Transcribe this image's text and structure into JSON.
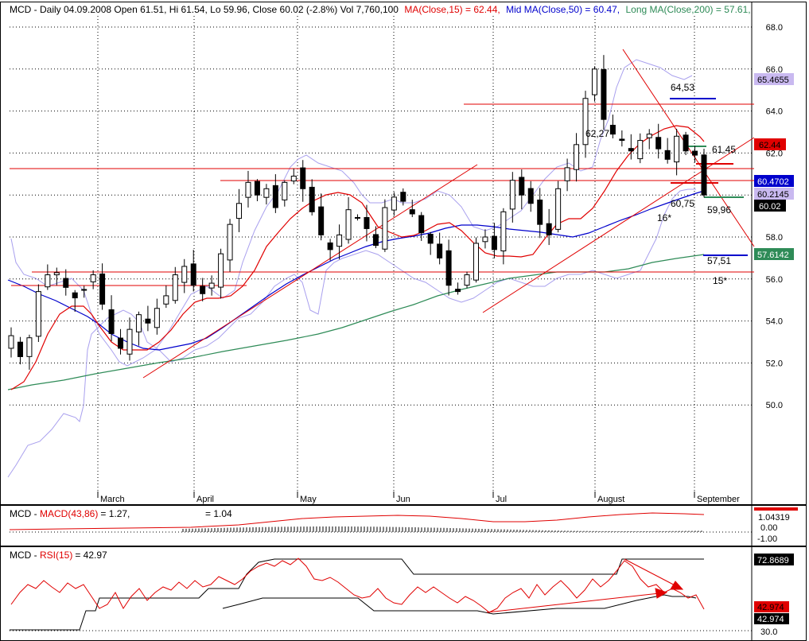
{
  "header": {
    "main": "MCD - Daily 04.09.2008 Open 61.51, Hi 61.54, Lo 59.96, Close 60.02 (-2.8%) Vol 7,760,100",
    "ma15": "MA(Close,15) = 62.44,",
    "ma50": "Mid MA(Close,50) = 60.47,",
    "ma200": "Long MA(Close,200) = 57.61,"
  },
  "macd_header": {
    "prefix": "MCD - ",
    "name": "MACD(43,86)",
    "value": "= 1.27,",
    "signal": "= 1.04"
  },
  "rsi_header": {
    "prefix": "MCD - ",
    "name": "RSI(15)",
    "value": "= 42.97"
  },
  "price_tags": [
    {
      "text": "65.4655",
      "bg": "#c9b9f0",
      "fg": "#000000"
    },
    {
      "text": "62.44",
      "bg": "#e00000",
      "fg": "#000000"
    },
    {
      "text": "60.4702",
      "bg": "#0000cc",
      "fg": "#ffffff"
    },
    {
      "text": "60.2145",
      "bg": "#c9b9f0",
      "fg": "#000000"
    },
    {
      "text": "60.02",
      "bg": "#000000",
      "fg": "#ffffff"
    },
    {
      "text": "57.6142",
      "bg": "#2e8b57",
      "fg": "#ffffff"
    }
  ],
  "macd_tags": [
    {
      "text": "1.04319"
    },
    {
      "text": "0.00"
    },
    {
      "text": "-1.00"
    }
  ],
  "rsi_tags": [
    {
      "text": "72.8689",
      "bg": "#000000",
      "fg": "#ffffff"
    },
    {
      "text": "42.974",
      "bg": "#e00000",
      "fg": "#000000"
    },
    {
      "text": "42.974",
      "bg": "#000000",
      "fg": "#ffffff"
    },
    {
      "text": "30.0",
      "bg": "#ffffff",
      "fg": "#000000"
    }
  ],
  "annotations": [
    {
      "text": "64,53"
    },
    {
      "text": "62,27"
    },
    {
      "text": "61,45"
    },
    {
      "text": "60,75"
    },
    {
      "text": "59,96"
    },
    {
      "text": "16*"
    },
    {
      "text": "57,51"
    },
    {
      "text": "15*"
    }
  ],
  "colors": {
    "ma15": "#e00000",
    "ma50": "#0000cc",
    "ma200": "#2e8b57",
    "bollinger": "#a9a0ee",
    "trend": "#e00000"
  },
  "chart_data": {
    "type": "candlestick",
    "symbol": "MCD",
    "interval": "Daily",
    "y_ticks": [
      "68.0",
      "66.0",
      "64.0",
      "62.0",
      "60.0",
      "58.0",
      "56.0",
      "54.0",
      "52.0",
      "50.0"
    ],
    "ylim": [
      48.0,
      68.5
    ],
    "x_labels": [
      "March",
      "April",
      "May",
      "Jun",
      "Jul",
      "August",
      "September"
    ],
    "close_path": [
      53.3,
      52.3,
      53.2,
      55.4,
      56.2,
      56.3,
      55.6,
      55.1,
      55.5,
      56.2,
      54.8,
      53.4,
      52.7,
      53.6,
      54.3,
      53.9,
      54.6,
      55.2,
      56.2,
      56.6,
      55.7,
      55.3,
      55.8,
      57.2,
      58.6,
      59.6,
      60.6,
      60.0,
      60.3,
      59.4,
      60.6,
      60.9,
      60.3,
      59.2,
      58.1,
      57.4,
      58.1,
      59.3,
      58.9,
      58.4,
      57.6,
      59.4,
      59.9,
      59.7,
      59.1,
      58.2,
      57.7,
      57.0,
      55.7,
      55.4,
      56.2,
      57.7,
      58.0,
      57.4,
      59.2,
      60.7,
      60.0,
      59.6,
      58.6,
      58.1,
      60.3,
      61.3,
      62.4,
      64.6,
      66.0,
      63.6,
      62.9,
      62.6,
      62.1,
      62.6,
      62.9,
      62.2,
      61.7,
      62.8,
      62.1,
      61.9,
      60.0
    ],
    "open_close_last": {
      "open": 61.51,
      "high": 61.54,
      "low": 59.96,
      "close": 60.02,
      "change_pct": -2.8,
      "volume": 7760100
    },
    "series": [
      {
        "name": "MA(Close,15)",
        "last": 62.44
      },
      {
        "name": "Mid MA(Close,50)",
        "last": 60.47
      },
      {
        "name": "Long MA(Close,200)",
        "last": 57.61
      }
    ],
    "bollinger": {
      "upper_last": 65.4655,
      "lower_last": 60.2145
    },
    "horizontal_lines": [
      64.2,
      61.3,
      60.8,
      56.9,
      56.3
    ],
    "macd": {
      "params": "43,86",
      "value": 1.27,
      "signal": 1.04,
      "last": 1.04319,
      "y_ticks": [
        "0.00",
        "-1.00"
      ]
    },
    "rsi": {
      "period": 15,
      "value": 42.97,
      "max_line": 72.8689,
      "y_ticks": [
        "30.0"
      ]
    }
  }
}
